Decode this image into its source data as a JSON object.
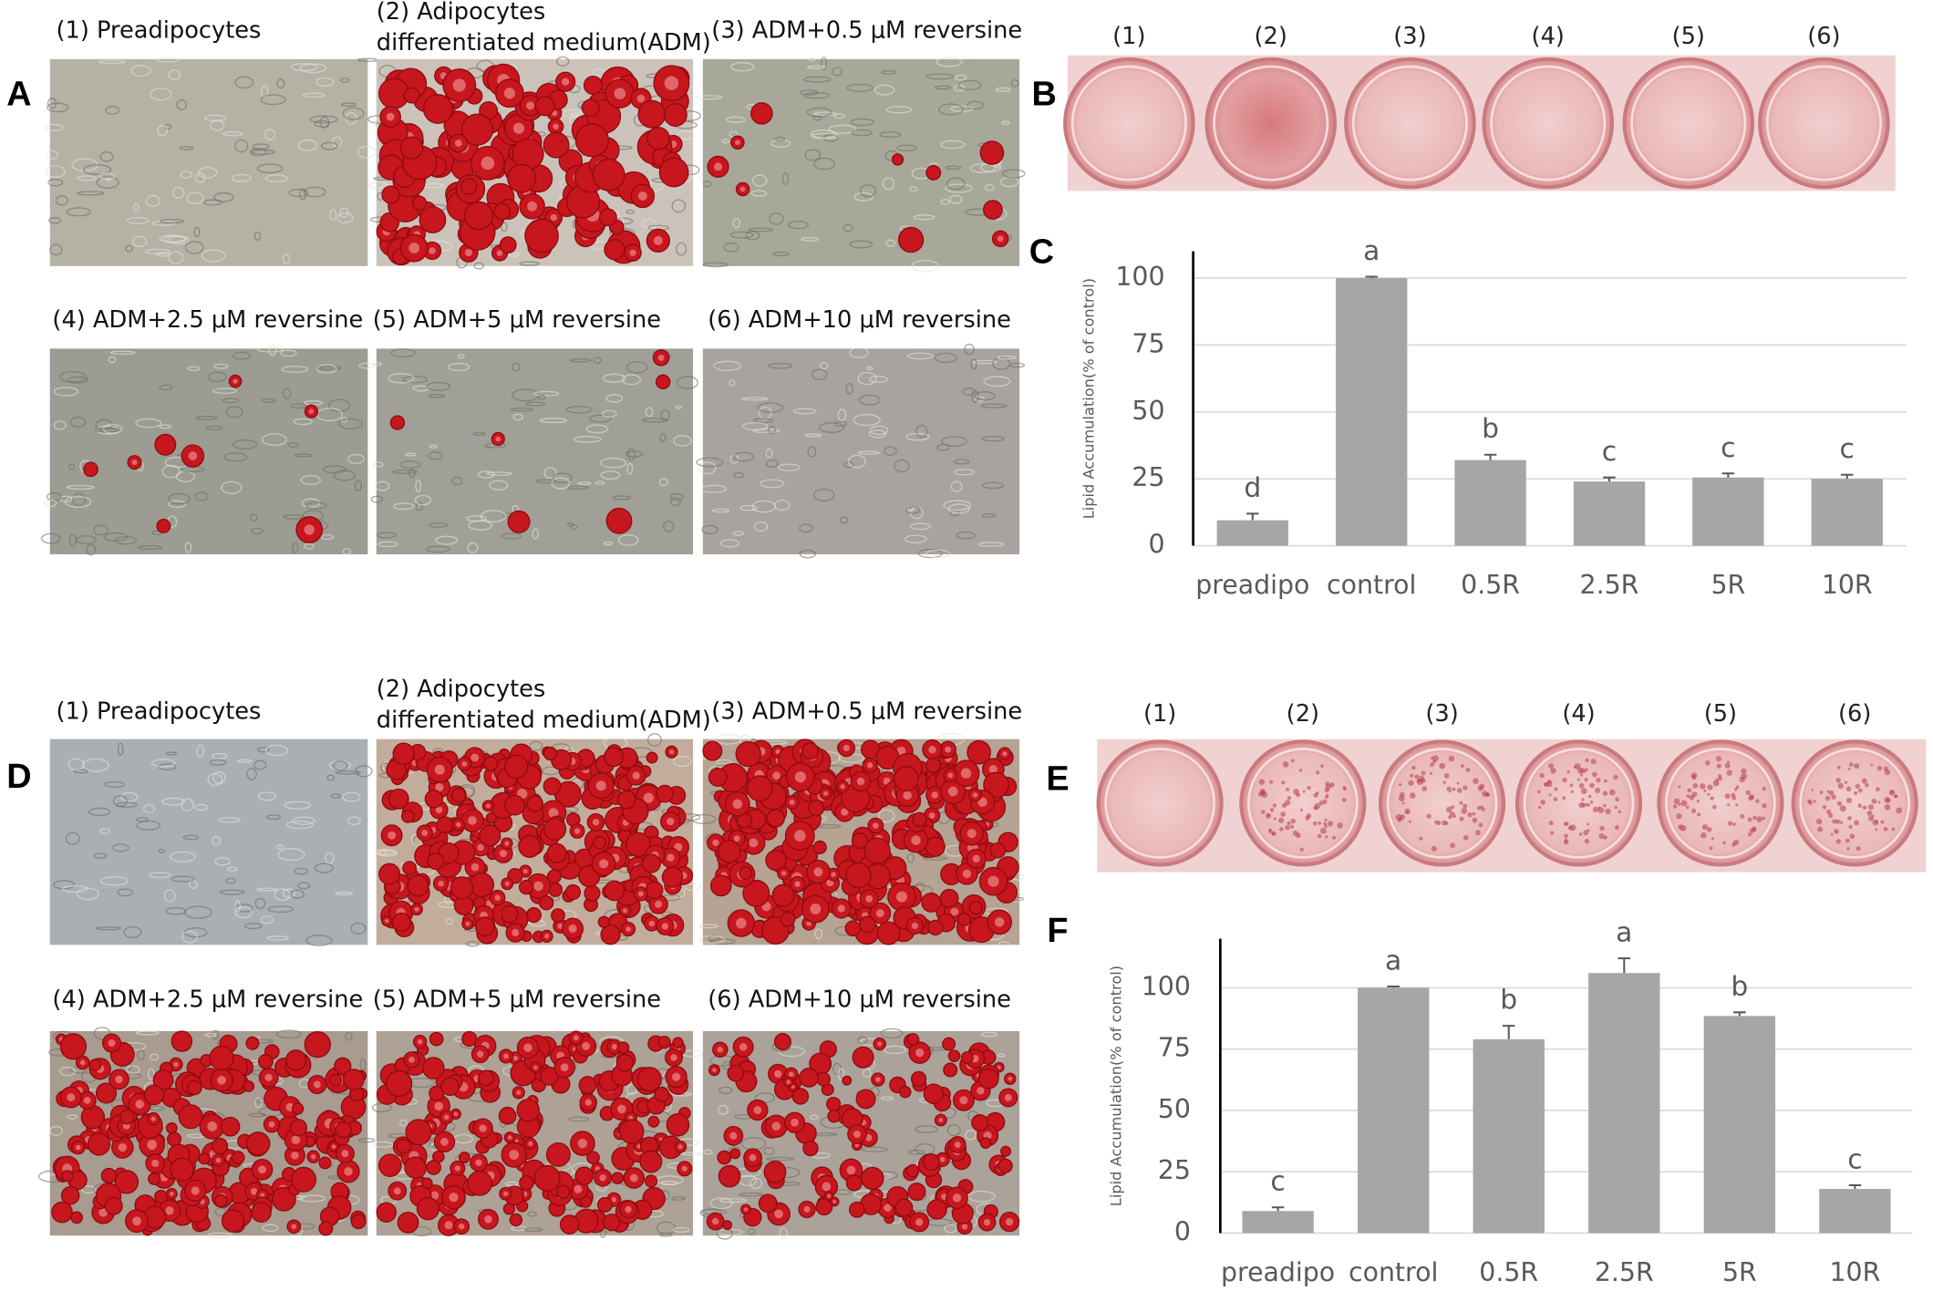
{
  "panels": {
    "A": {
      "label": "A",
      "captions": [
        [
          "(1) Preadipocytes"
        ],
        [
          "(2) Adipocytes",
          "differentiated medium(ADM)"
        ],
        [
          "(3) ADM+0.5 μM reversine"
        ],
        [
          "(4) ADM+2.5 μM reversine"
        ],
        [
          "(5) ADM+5 μM reversine"
        ],
        [
          "(6) ADM+10 μM reversine"
        ]
      ]
    },
    "B": {
      "label": "B",
      "wells": [
        "(1)",
        "(2)",
        "(3)",
        "(4)",
        "(5)",
        "(6)"
      ]
    },
    "C": {
      "label": "C"
    },
    "D": {
      "label": "D",
      "captions": [
        [
          "(1) Preadipocytes"
        ],
        [
          "(2) Adipocytes",
          "differentiated medium(ADM)"
        ],
        [
          "(3) ADM+0.5 μM reversine"
        ],
        [
          "(4) ADM+2.5 μM reversine"
        ],
        [
          "(5) ADM+5 μM reversine"
        ],
        [
          "(6) ADM+10 μM reversine"
        ]
      ]
    },
    "E": {
      "label": "E",
      "wells": [
        "(1)",
        "(2)",
        "(3)",
        "(4)",
        "(5)",
        "(6)"
      ]
    },
    "F": {
      "label": "F"
    }
  },
  "chart_data": [
    {
      "type": "bar",
      "ylabel": "Lipid Accumulation(% of control)",
      "categories": [
        "preadipo",
        "control",
        "0.5R",
        "2.5R",
        "5R",
        "10R"
      ],
      "values": [
        9.5,
        100,
        32,
        24,
        25.5,
        25
      ],
      "errors": [
        2.5,
        0.5,
        2,
        1.5,
        1.5,
        1.5
      ],
      "annotations": [
        "d",
        "a",
        "b",
        "c",
        "c",
        "c"
      ],
      "color": "#a6a6a6",
      "ylim": [
        0,
        110
      ],
      "yticks": [
        0,
        25,
        50,
        75,
        100
      ],
      "grid": true
    },
    {
      "type": "bar",
      "ylabel": "Lipid Accumulation(% of control)",
      "categories": [
        "preadipo",
        "control",
        "0.5R",
        "2.5R",
        "5R",
        "10R"
      ],
      "values": [
        9,
        100,
        79,
        106,
        88.5,
        18
      ],
      "errors": [
        1.5,
        0.5,
        5.5,
        6,
        1.5,
        1.5
      ],
      "annotations": [
        "c",
        "a",
        "b",
        "a",
        "b",
        "c"
      ],
      "color": "#a6a6a6",
      "ylim": [
        0,
        120
      ],
      "yticks": [
        0,
        25,
        50,
        75,
        100
      ],
      "grid": true
    }
  ]
}
